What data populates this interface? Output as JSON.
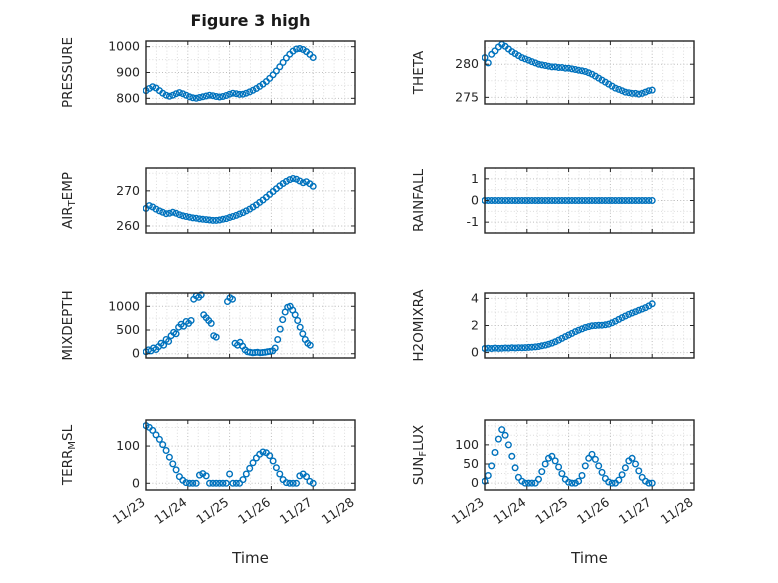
{
  "figure": {
    "title": "Figure 3 high",
    "background": "#ffffff"
  },
  "colors": {
    "marker": "#0072BD",
    "axis": "#262626",
    "text": "#262626",
    "grid_major": "#bdbdbd",
    "grid_minor": "#dcdcdc"
  },
  "x_axis": {
    "label": "Time",
    "lim": [
      23,
      28
    ],
    "ticks": [
      23,
      24,
      25,
      26,
      27,
      28
    ],
    "tick_labels": [
      "11/23",
      "11/24",
      "11/25",
      "11/26",
      "11/27",
      "11/28"
    ],
    "minor_step": 0.25
  },
  "chart_data": [
    {
      "id": "pressure",
      "type": "scatter",
      "row": 0,
      "col": 0,
      "ylabel_parts": [
        {
          "text": "PRESSURE"
        }
      ],
      "yticks": [
        800,
        900,
        1000
      ],
      "ylim": [
        778,
        1022
      ],
      "x": [
        23,
        23.08,
        23.16,
        23.24,
        23.32,
        23.4,
        23.48,
        23.56,
        23.64,
        23.72,
        23.8,
        23.88,
        23.96,
        24.04,
        24.12,
        24.2,
        24.28,
        24.36,
        24.44,
        24.52,
        24.6,
        24.68,
        24.76,
        24.84,
        24.92,
        25,
        25.08,
        25.16,
        25.24,
        25.32,
        25.4,
        25.48,
        25.56,
        25.64,
        25.72,
        25.8,
        25.88,
        25.96,
        26.04,
        26.12,
        26.2,
        26.28,
        26.36,
        26.44,
        26.52,
        26.6,
        26.68,
        26.76,
        26.84,
        26.92,
        27
      ],
      "y": [
        830,
        838,
        845,
        840,
        830,
        820,
        812,
        808,
        812,
        818,
        822,
        818,
        812,
        806,
        802,
        800,
        803,
        806,
        809,
        812,
        810,
        807,
        805,
        807,
        811,
        816,
        820,
        818,
        815,
        816,
        820,
        825,
        831,
        838,
        846,
        855,
        865,
        877,
        891,
        906,
        922,
        939,
        956,
        971,
        983,
        991,
        993,
        989,
        981,
        970,
        958
      ]
    },
    {
      "id": "theta",
      "type": "scatter",
      "row": 0,
      "col": 1,
      "ylabel_parts": [
        {
          "text": "THETA"
        }
      ],
      "yticks": [
        275,
        280
      ],
      "ylim": [
        274,
        283.5
      ],
      "x": [
        23,
        23.08,
        23.16,
        23.24,
        23.32,
        23.4,
        23.48,
        23.56,
        23.64,
        23.72,
        23.8,
        23.88,
        23.96,
        24.04,
        24.12,
        24.2,
        24.28,
        24.36,
        24.44,
        24.52,
        24.6,
        24.68,
        24.76,
        24.84,
        24.92,
        25,
        25.08,
        25.16,
        25.24,
        25.32,
        25.4,
        25.48,
        25.56,
        25.64,
        25.72,
        25.8,
        25.88,
        25.96,
        26.04,
        26.12,
        26.2,
        26.28,
        26.36,
        26.44,
        26.52,
        26.6,
        26.68,
        26.76,
        26.84,
        26.92,
        27
      ],
      "y": [
        281,
        280.2,
        281.5,
        282,
        282.6,
        283,
        282.7,
        282.3,
        281.9,
        281.6,
        281.3,
        281,
        280.8,
        280.6,
        280.4,
        280.2,
        280,
        279.9,
        279.8,
        279.7,
        279.6,
        279.6,
        279.5,
        279.5,
        279.4,
        279.4,
        279.3,
        279.2,
        279.1,
        279,
        278.9,
        278.7,
        278.5,
        278.2,
        277.9,
        277.6,
        277.3,
        277,
        276.7,
        276.4,
        276.2,
        276,
        275.8,
        275.7,
        275.6,
        275.6,
        275.5,
        275.6,
        275.8,
        276,
        276.1
      ]
    },
    {
      "id": "air_temp",
      "type": "scatter",
      "row": 1,
      "col": 0,
      "ylabel_parts": [
        {
          "text": "AIR"
        },
        {
          "text": "T",
          "sub": true
        },
        {
          "text": "EMP"
        }
      ],
      "yticks": [
        260,
        270
      ],
      "ylim": [
        258,
        276.5
      ],
      "x": [
        23,
        23.08,
        23.16,
        23.24,
        23.32,
        23.4,
        23.48,
        23.56,
        23.64,
        23.72,
        23.8,
        23.88,
        23.96,
        24.04,
        24.12,
        24.2,
        24.28,
        24.36,
        24.44,
        24.52,
        24.6,
        24.68,
        24.76,
        24.84,
        24.92,
        25,
        25.08,
        25.16,
        25.24,
        25.32,
        25.4,
        25.48,
        25.56,
        25.64,
        25.72,
        25.8,
        25.88,
        25.96,
        26.04,
        26.12,
        26.2,
        26.28,
        26.36,
        26.44,
        26.52,
        26.6,
        26.68,
        26.76,
        26.84,
        26.92,
        27
      ],
      "y": [
        265,
        265.8,
        265.4,
        264.8,
        264.3,
        263.9,
        263.5,
        263.6,
        263.9,
        263.6,
        263.2,
        262.9,
        262.7,
        262.5,
        262.3,
        262.2,
        262,
        261.9,
        261.8,
        261.7,
        261.6,
        261.6,
        261.7,
        261.9,
        262.1,
        262.4,
        262.7,
        263,
        263.4,
        263.8,
        264.3,
        264.8,
        265.4,
        266,
        266.7,
        267.4,
        268.2,
        269,
        269.8,
        270.6,
        271.4,
        272.1,
        272.7,
        273.2,
        273.5,
        273.3,
        272.8,
        272.3,
        272.6,
        272,
        271.3
      ]
    },
    {
      "id": "rainfall",
      "type": "scatter",
      "row": 1,
      "col": 1,
      "ylabel_parts": [
        {
          "text": "RAINFALL"
        }
      ],
      "yticks": [
        -1,
        0,
        1
      ],
      "ylim": [
        -1.5,
        1.5
      ],
      "x": [
        23,
        23.08,
        23.16,
        23.24,
        23.32,
        23.4,
        23.48,
        23.56,
        23.64,
        23.72,
        23.8,
        23.88,
        23.96,
        24.04,
        24.12,
        24.2,
        24.28,
        24.36,
        24.44,
        24.52,
        24.6,
        24.68,
        24.76,
        24.84,
        24.92,
        25,
        25.08,
        25.16,
        25.24,
        25.32,
        25.4,
        25.48,
        25.56,
        25.64,
        25.72,
        25.8,
        25.88,
        25.96,
        26.04,
        26.12,
        26.2,
        26.28,
        26.36,
        26.44,
        26.52,
        26.6,
        26.68,
        26.76,
        26.84,
        26.92,
        27
      ],
      "y": [
        0,
        0,
        0,
        0,
        0,
        0,
        0,
        0,
        0,
        0,
        0,
        0,
        0,
        0,
        0,
        0,
        0,
        0,
        0,
        0,
        0,
        0,
        0,
        0,
        0,
        0,
        0,
        0,
        0,
        0,
        0,
        0,
        0,
        0,
        0,
        0,
        0,
        0,
        0,
        0,
        0,
        0,
        0,
        0,
        0,
        0,
        0,
        0,
        0,
        0,
        0
      ]
    },
    {
      "id": "mixdepth",
      "type": "scatter",
      "row": 2,
      "col": 0,
      "ylabel_parts": [
        {
          "text": "MIXDEPTH"
        }
      ],
      "yticks": [
        0,
        500,
        1000
      ],
      "ylim": [
        -90,
        1280
      ],
      "x": [
        23,
        23.06,
        23.12,
        23.18,
        23.24,
        23.3,
        23.36,
        23.42,
        23.48,
        23.54,
        23.6,
        23.66,
        23.72,
        23.78,
        23.84,
        23.9,
        23.96,
        24.02,
        24.08,
        24.14,
        24.2,
        24.26,
        24.32,
        24.38,
        24.44,
        24.5,
        24.56,
        24.62,
        24.68,
        24.95,
        25.01,
        25.07,
        25.13,
        25.19,
        25.25,
        25.31,
        25.37,
        25.43,
        25.49,
        25.55,
        25.61,
        25.67,
        25.73,
        25.79,
        25.85,
        25.91,
        25.97,
        26.03,
        26.09,
        26.15,
        26.21,
        26.27,
        26.33,
        26.39,
        26.45,
        26.51,
        26.57,
        26.63,
        26.69,
        26.75,
        26.81,
        26.87,
        26.93
      ],
      "y": [
        40,
        80,
        60,
        120,
        90,
        150,
        220,
        180,
        300,
        260,
        380,
        450,
        420,
        560,
        620,
        580,
        680,
        640,
        700,
        1150,
        1220,
        1190,
        1240,
        820,
        760,
        700,
        640,
        380,
        350,
        1100,
        1180,
        1150,
        220,
        180,
        240,
        160,
        80,
        40,
        30,
        20,
        25,
        30,
        20,
        25,
        30,
        40,
        50,
        60,
        120,
        300,
        520,
        720,
        880,
        980,
        1000,
        920,
        820,
        700,
        560,
        420,
        300,
        220,
        180
      ]
    },
    {
      "id": "h2omixra",
      "type": "scatter",
      "row": 2,
      "col": 1,
      "ylabel_parts": [
        {
          "text": "H2OMIXRA"
        }
      ],
      "yticks": [
        0,
        2,
        4
      ],
      "ylim": [
        -0.4,
        4.4
      ],
      "x": [
        23,
        23.08,
        23.16,
        23.24,
        23.32,
        23.4,
        23.48,
        23.56,
        23.64,
        23.72,
        23.8,
        23.88,
        23.96,
        24.04,
        24.12,
        24.2,
        24.28,
        24.36,
        24.44,
        24.52,
        24.6,
        24.68,
        24.76,
        24.84,
        24.92,
        25,
        25.08,
        25.16,
        25.24,
        25.32,
        25.4,
        25.48,
        25.56,
        25.64,
        25.72,
        25.8,
        25.88,
        25.96,
        26.04,
        26.12,
        26.2,
        26.28,
        26.36,
        26.44,
        26.52,
        26.6,
        26.68,
        26.76,
        26.84,
        26.92,
        27
      ],
      "y": [
        0.3,
        0.32,
        0.3,
        0.33,
        0.31,
        0.32,
        0.34,
        0.33,
        0.35,
        0.34,
        0.36,
        0.35,
        0.37,
        0.38,
        0.4,
        0.42,
        0.45,
        0.5,
        0.55,
        0.62,
        0.7,
        0.8,
        0.92,
        1.05,
        1.18,
        1.3,
        1.42,
        1.55,
        1.65,
        1.75,
        1.85,
        1.92,
        1.98,
        2,
        2.02,
        2.02,
        2.05,
        2.1,
        2.2,
        2.32,
        2.45,
        2.58,
        2.7,
        2.82,
        2.92,
        3.02,
        3.12,
        3.22,
        3.32,
        3.45,
        3.6
      ]
    },
    {
      "id": "terr_msl",
      "type": "scatter",
      "row": 3,
      "col": 0,
      "ylabel_parts": [
        {
          "text": "TERR"
        },
        {
          "text": "M",
          "sub": true
        },
        {
          "text": "SL"
        }
      ],
      "yticks": [
        0,
        100
      ],
      "ylim": [
        -18,
        170
      ],
      "x": [
        23,
        23.08,
        23.16,
        23.24,
        23.32,
        23.4,
        23.48,
        23.56,
        23.64,
        23.72,
        23.8,
        23.88,
        23.96,
        24.04,
        24.12,
        24.2,
        24.28,
        24.36,
        24.44,
        24.52,
        24.6,
        24.68,
        24.76,
        24.84,
        24.92,
        25,
        25.08,
        25.16,
        25.24,
        25.32,
        25.4,
        25.48,
        25.56,
        25.64,
        25.72,
        25.8,
        25.88,
        25.96,
        26.04,
        26.12,
        26.2,
        26.28,
        26.36,
        26.44,
        26.52,
        26.6,
        26.68,
        26.76,
        26.84,
        26.92,
        27
      ],
      "y": [
        155,
        150,
        142,
        130,
        118,
        104,
        88,
        70,
        52,
        36,
        18,
        8,
        2,
        0,
        0,
        0,
        22,
        26,
        20,
        0,
        0,
        0,
        0,
        0,
        0,
        25,
        0,
        0,
        0,
        10,
        25,
        40,
        55,
        68,
        78,
        84,
        82,
        74,
        60,
        42,
        25,
        10,
        2,
        0,
        0,
        0,
        20,
        25,
        18,
        5,
        0
      ]
    },
    {
      "id": "sun_flux",
      "type": "scatter",
      "row": 3,
      "col": 1,
      "ylabel_parts": [
        {
          "text": "SUN"
        },
        {
          "text": "F",
          "sub": true
        },
        {
          "text": "LUX"
        }
      ],
      "yticks": [
        0,
        50,
        100
      ],
      "ylim": [
        -18,
        165
      ],
      "x": [
        23,
        23.08,
        23.16,
        23.24,
        23.32,
        23.4,
        23.48,
        23.56,
        23.64,
        23.72,
        23.8,
        23.88,
        23.96,
        24.04,
        24.12,
        24.2,
        24.28,
        24.36,
        24.44,
        24.52,
        24.6,
        24.68,
        24.76,
        24.84,
        24.92,
        25,
        25.08,
        25.16,
        25.24,
        25.32,
        25.4,
        25.48,
        25.56,
        25.64,
        25.72,
        25.8,
        25.88,
        25.96,
        26.04,
        26.12,
        26.2,
        26.28,
        26.36,
        26.44,
        26.52,
        26.6,
        26.68,
        26.76,
        26.84,
        26.92,
        27
      ],
      "y": [
        5,
        20,
        45,
        80,
        115,
        140,
        125,
        100,
        70,
        40,
        15,
        5,
        0,
        0,
        0,
        0,
        10,
        30,
        50,
        65,
        70,
        58,
        42,
        25,
        10,
        2,
        0,
        0,
        5,
        20,
        45,
        65,
        75,
        62,
        45,
        28,
        12,
        3,
        0,
        0,
        8,
        22,
        40,
        58,
        65,
        50,
        32,
        15,
        5,
        0,
        0
      ]
    }
  ]
}
